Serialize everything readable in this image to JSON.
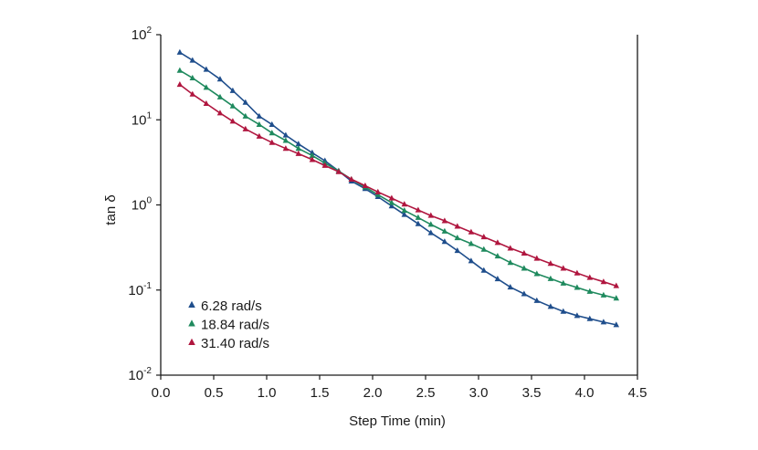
{
  "chart_data": {
    "type": "line",
    "title": "",
    "xlabel": "Step Time (min)",
    "ylabel": "tan δ",
    "xlim": [
      0.0,
      4.5
    ],
    "ylim": [
      0.01,
      100
    ],
    "yscale": "log",
    "x_ticks": [
      "0.0",
      "0.5",
      "1.0",
      "1.5",
      "2.0",
      "2.5",
      "3.0",
      "3.5",
      "4.0",
      "4.5"
    ],
    "y_ticks": [
      {
        "base": "10",
        "exp": "-2"
      },
      {
        "base": "10",
        "exp": "-1"
      },
      {
        "base": "10",
        "exp": "0"
      },
      {
        "base": "10",
        "exp": "1"
      },
      {
        "base": "10",
        "exp": "2"
      }
    ],
    "grid": false,
    "legend_position": "bottom-left",
    "marker": "triangle",
    "series": [
      {
        "name": "6.28 rad/s",
        "color": "#1f4e8c",
        "x": [
          0.18,
          0.3,
          0.43,
          0.56,
          0.68,
          0.8,
          0.93,
          1.05,
          1.18,
          1.3,
          1.43,
          1.55,
          1.68,
          1.8,
          1.93,
          2.05,
          2.18,
          2.3,
          2.43,
          2.55,
          2.68,
          2.8,
          2.93,
          3.05,
          3.18,
          3.3,
          3.43,
          3.55,
          3.68,
          3.8,
          3.93,
          4.05,
          4.18,
          4.3
        ],
        "y": [
          62,
          50,
          39,
          30,
          22,
          16,
          11,
          8.8,
          6.6,
          5.2,
          4.1,
          3.3,
          2.5,
          1.9,
          1.55,
          1.25,
          0.97,
          0.77,
          0.6,
          0.47,
          0.37,
          0.29,
          0.22,
          0.17,
          0.135,
          0.108,
          0.09,
          0.075,
          0.064,
          0.056,
          0.05,
          0.046,
          0.042,
          0.039
        ]
      },
      {
        "name": "18.84 rad/s",
        "color": "#1f8a5e",
        "x": [
          0.18,
          0.3,
          0.43,
          0.56,
          0.68,
          0.8,
          0.93,
          1.05,
          1.18,
          1.3,
          1.43,
          1.55,
          1.68,
          1.8,
          1.93,
          2.05,
          2.18,
          2.3,
          2.43,
          2.55,
          2.68,
          2.8,
          2.93,
          3.05,
          3.18,
          3.3,
          3.43,
          3.55,
          3.68,
          3.8,
          3.93,
          4.05,
          4.18,
          4.3
        ],
        "y": [
          38,
          31,
          24,
          18.5,
          14.5,
          11,
          8.8,
          7,
          5.7,
          4.6,
          3.8,
          3.1,
          2.5,
          2.0,
          1.62,
          1.32,
          1.06,
          0.86,
          0.71,
          0.59,
          0.49,
          0.41,
          0.35,
          0.3,
          0.25,
          0.21,
          0.18,
          0.155,
          0.136,
          0.12,
          0.107,
          0.096,
          0.087,
          0.08
        ]
      },
      {
        "name": "31.40 rad/s",
        "color": "#b0163f",
        "x": [
          0.18,
          0.3,
          0.43,
          0.56,
          0.68,
          0.8,
          0.93,
          1.05,
          1.18,
          1.3,
          1.43,
          1.55,
          1.68,
          1.8,
          1.93,
          2.05,
          2.18,
          2.3,
          2.43,
          2.55,
          2.68,
          2.8,
          2.93,
          3.05,
          3.18,
          3.3,
          3.43,
          3.55,
          3.68,
          3.8,
          3.93,
          4.05,
          4.18,
          4.3
        ],
        "y": [
          26,
          20,
          15.5,
          12,
          9.6,
          7.8,
          6.4,
          5.4,
          4.6,
          4.0,
          3.4,
          2.9,
          2.45,
          2.0,
          1.68,
          1.42,
          1.2,
          1.02,
          0.87,
          0.75,
          0.65,
          0.56,
          0.48,
          0.42,
          0.36,
          0.31,
          0.27,
          0.235,
          0.205,
          0.18,
          0.158,
          0.14,
          0.125,
          0.112
        ]
      }
    ]
  }
}
